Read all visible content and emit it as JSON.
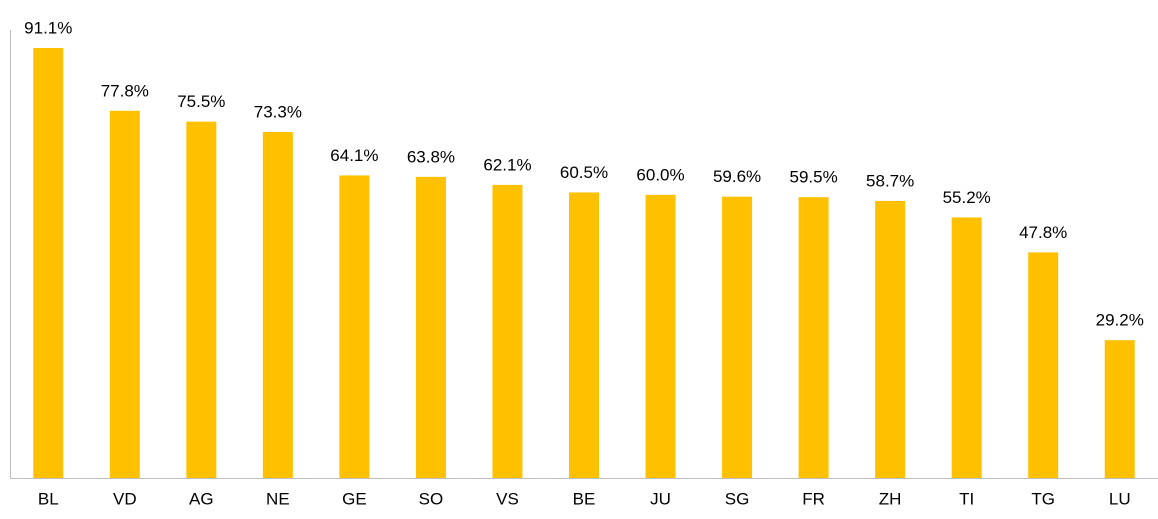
{
  "chart_data": {
    "type": "bar",
    "categories": [
      "BL",
      "VD",
      "AG",
      "NE",
      "GE",
      "SO",
      "VS",
      "BE",
      "JU",
      "SG",
      "FR",
      "ZH",
      "TI",
      "TG",
      "LU"
    ],
    "values": [
      91.1,
      77.8,
      75.5,
      73.3,
      64.1,
      63.8,
      62.1,
      60.5,
      60.0,
      59.6,
      59.5,
      58.7,
      55.2,
      47.8,
      29.2
    ],
    "value_labels": [
      "91.1%",
      "77.8%",
      "75.5%",
      "73.3%",
      "64.1%",
      "63.8%",
      "62.1%",
      "60.5%",
      "60.0%",
      "59.6%",
      "59.5%",
      "58.7%",
      "55.2%",
      "47.8%",
      "29.2%"
    ],
    "color": "#ffc000",
    "ylim": [
      0,
      100
    ]
  }
}
